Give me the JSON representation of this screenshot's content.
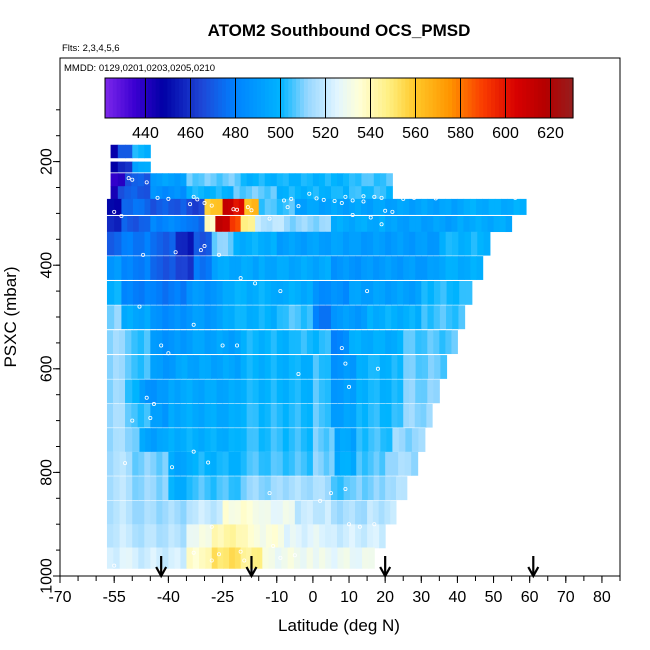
{
  "chart_data": {
    "type": "heatmap",
    "title": "ATOM2 Southbound OCS_PMSD",
    "subtitle": "Flts: 2,3,4,5,6",
    "note": "MMDD: 0129,0201,0203,0205,0210",
    "xlabel": "Latitude (deg N)",
    "ylabel": "PSXC (mbar)",
    "xlim": [
      -70,
      85
    ],
    "ylim": [
      1000,
      0
    ],
    "x_ticks": [
      -70,
      -55,
      -40,
      -25,
      -10,
      0,
      10,
      20,
      30,
      40,
      50,
      60,
      70,
      80
    ],
    "x_tick_labels": [
      "-70",
      "-55",
      "-40",
      "-25",
      "-10",
      "0",
      "10",
      "20",
      "30",
      "40",
      "50",
      "60",
      "70",
      "80"
    ],
    "y_ticks": [
      200,
      400,
      600,
      800,
      1000
    ],
    "y_tick_labels": [
      "200",
      "400",
      "600",
      "800",
      "1000"
    ],
    "colorbar": {
      "range": [
        422,
        630
      ],
      "ticks": [
        440,
        460,
        480,
        500,
        520,
        540,
        560,
        580,
        600,
        620
      ],
      "tick_labels": [
        "440",
        "460",
        "480",
        "500",
        "520",
        "540",
        "560",
        "580",
        "600",
        "620"
      ]
    },
    "arrows_latitude": [
      -42,
      -17,
      20,
      61
    ],
    "rows": [
      {
        "p": 180,
        "h": 25,
        "segs": [
          [
            -56,
            -54,
            448
          ],
          [
            -54,
            -50,
            468
          ],
          [
            -50,
            -45,
            500
          ]
        ]
      },
      {
        "p": 210,
        "h": 20,
        "segs": [
          [
            -56,
            -54,
            445
          ],
          [
            -54,
            -50,
            460
          ],
          [
            -50,
            -45,
            495
          ]
        ]
      },
      {
        "p": 235,
        "h": 25,
        "segs": [
          [
            -56,
            -52,
            440
          ],
          [
            -52,
            -45,
            470
          ],
          [
            -45,
            -35,
            492
          ],
          [
            -35,
            -20,
            508
          ],
          [
            -20,
            10,
            500
          ],
          [
            10,
            22,
            505
          ]
        ]
      },
      {
        "p": 260,
        "h": 25,
        "segs": [
          [
            -56,
            -54,
            440
          ],
          [
            -54,
            -45,
            470
          ],
          [
            -45,
            -35,
            485
          ],
          [
            -35,
            -22,
            500
          ],
          [
            -22,
            -10,
            508
          ],
          [
            -10,
            10,
            500
          ],
          [
            10,
            22,
            503
          ]
        ]
      },
      {
        "p": 287,
        "h": 30,
        "segs": [
          [
            -57,
            -53,
            450
          ],
          [
            -53,
            -45,
            475
          ],
          [
            -45,
            -35,
            470
          ],
          [
            -35,
            -30,
            465
          ],
          [
            -30,
            -25,
            560
          ],
          [
            -25,
            -22,
            610
          ],
          [
            -22,
            -19,
            600
          ],
          [
            -19,
            -15,
            565
          ],
          [
            -15,
            -5,
            505
          ],
          [
            -5,
            40,
            493
          ],
          [
            40,
            59,
            497
          ]
        ]
      },
      {
        "p": 320,
        "h": 30,
        "segs": [
          [
            -57,
            -53,
            455
          ],
          [
            -53,
            -45,
            470
          ],
          [
            -45,
            -35,
            482
          ],
          [
            -35,
            -30,
            475
          ],
          [
            -30,
            -27,
            540
          ],
          [
            -27,
            -23,
            612
          ],
          [
            -23,
            -20,
            590
          ],
          [
            -20,
            -16,
            545
          ],
          [
            -16,
            -8,
            518
          ],
          [
            -8,
            5,
            512
          ],
          [
            5,
            20,
            496
          ],
          [
            20,
            40,
            492
          ],
          [
            40,
            55,
            496
          ]
        ]
      },
      {
        "p": 358,
        "h": 45,
        "segs": [
          [
            -57,
            -53,
            470
          ],
          [
            -53,
            -45,
            478
          ],
          [
            -45,
            -38,
            472
          ],
          [
            -38,
            -33,
            455
          ],
          [
            -33,
            -28,
            470
          ],
          [
            -28,
            -22,
            510
          ],
          [
            -22,
            -10,
            498
          ],
          [
            -10,
            10,
            492
          ],
          [
            10,
            35,
            490
          ],
          [
            35,
            49,
            500
          ]
        ]
      },
      {
        "p": 405,
        "h": 45,
        "segs": [
          [
            -57,
            -53,
            488
          ],
          [
            -53,
            -45,
            480
          ],
          [
            -45,
            -38,
            470
          ],
          [
            -38,
            -33,
            462
          ],
          [
            -33,
            -28,
            478
          ],
          [
            -28,
            -15,
            495
          ],
          [
            -15,
            5,
            495
          ],
          [
            5,
            15,
            488
          ],
          [
            15,
            35,
            490
          ],
          [
            35,
            47,
            497
          ]
        ]
      },
      {
        "p": 453,
        "h": 45,
        "segs": [
          [
            -57,
            -53,
            498
          ],
          [
            -53,
            -45,
            480
          ],
          [
            -45,
            -35,
            478
          ],
          [
            -35,
            -25,
            488
          ],
          [
            -25,
            -10,
            498
          ],
          [
            -10,
            0,
            497
          ],
          [
            0,
            10,
            485
          ],
          [
            10,
            30,
            492
          ],
          [
            30,
            44,
            502
          ]
        ]
      },
      {
        "p": 500,
        "h": 45,
        "segs": [
          [
            -57,
            -53,
            510
          ],
          [
            -53,
            -45,
            495
          ],
          [
            -45,
            -35,
            485
          ],
          [
            -35,
            -25,
            490
          ],
          [
            -25,
            -10,
            499
          ],
          [
            -10,
            0,
            505
          ],
          [
            0,
            5,
            478
          ],
          [
            5,
            15,
            490
          ],
          [
            15,
            30,
            498
          ],
          [
            30,
            42,
            505
          ]
        ]
      },
      {
        "p": 548,
        "h": 45,
        "segs": [
          [
            -57,
            -52,
            512
          ],
          [
            -52,
            -45,
            505
          ],
          [
            -45,
            -35,
            488
          ],
          [
            -35,
            -20,
            493
          ],
          [
            -20,
            -5,
            500
          ],
          [
            -5,
            5,
            502
          ],
          [
            5,
            10,
            482
          ],
          [
            10,
            25,
            497
          ],
          [
            25,
            40,
            506
          ]
        ]
      },
      {
        "p": 596,
        "h": 45,
        "segs": [
          [
            -57,
            -52,
            512
          ],
          [
            -52,
            -45,
            505
          ],
          [
            -45,
            -38,
            490
          ],
          [
            -38,
            -20,
            494
          ],
          [
            -20,
            0,
            499
          ],
          [
            0,
            5,
            504
          ],
          [
            5,
            12,
            488
          ],
          [
            12,
            25,
            500
          ],
          [
            25,
            37,
            508
          ]
        ]
      },
      {
        "p": 643,
        "h": 45,
        "segs": [
          [
            -57,
            -52,
            512
          ],
          [
            -52,
            -48,
            500
          ],
          [
            -48,
            -40,
            488
          ],
          [
            -40,
            -20,
            495
          ],
          [
            -20,
            0,
            500
          ],
          [
            0,
            5,
            505
          ],
          [
            5,
            12,
            490
          ],
          [
            12,
            25,
            500
          ],
          [
            25,
            35,
            510
          ]
        ]
      },
      {
        "p": 690,
        "h": 45,
        "segs": [
          [
            -57,
            -52,
            514
          ],
          [
            -52,
            -45,
            505
          ],
          [
            -45,
            -40,
            490
          ],
          [
            -40,
            -20,
            496
          ],
          [
            -20,
            0,
            502
          ],
          [
            0,
            5,
            506
          ],
          [
            5,
            12,
            492
          ],
          [
            12,
            25,
            502
          ],
          [
            25,
            33,
            512
          ]
        ]
      },
      {
        "p": 737,
        "h": 45,
        "segs": [
          [
            -57,
            -52,
            514
          ],
          [
            -52,
            -48,
            508
          ],
          [
            -48,
            -40,
            493
          ],
          [
            -40,
            -20,
            498
          ],
          [
            -20,
            0,
            503
          ],
          [
            0,
            6,
            508
          ],
          [
            6,
            12,
            494
          ],
          [
            12,
            22,
            504
          ],
          [
            22,
            31,
            512
          ]
        ]
      },
      {
        "p": 783,
        "h": 45,
        "segs": [
          [
            -57,
            -50,
            516
          ],
          [
            -50,
            -40,
            510
          ],
          [
            -40,
            -35,
            495
          ],
          [
            -35,
            -20,
            500
          ],
          [
            -20,
            0,
            505
          ],
          [
            0,
            6,
            510
          ],
          [
            6,
            12,
            497
          ],
          [
            12,
            20,
            506
          ],
          [
            20,
            29,
            514
          ]
        ]
      },
      {
        "p": 830,
        "h": 45,
        "segs": [
          [
            -57,
            -50,
            517
          ],
          [
            -50,
            -40,
            512
          ],
          [
            -40,
            -35,
            498
          ],
          [
            -35,
            -20,
            505
          ],
          [
            -20,
            -10,
            512
          ],
          [
            -10,
            5,
            515
          ],
          [
            5,
            12,
            506
          ],
          [
            12,
            20,
            510
          ],
          [
            20,
            26,
            516
          ]
        ]
      },
      {
        "p": 877,
        "h": 45,
        "segs": [
          [
            -57,
            -50,
            518
          ],
          [
            -50,
            -35,
            514
          ],
          [
            -35,
            -25,
            520
          ],
          [
            -25,
            -15,
            534
          ],
          [
            -15,
            -5,
            528
          ],
          [
            -5,
            5,
            520
          ],
          [
            5,
            15,
            515
          ],
          [
            15,
            23,
            518
          ]
        ]
      },
      {
        "p": 923,
        "h": 45,
        "segs": [
          [
            -57,
            -50,
            520
          ],
          [
            -50,
            -35,
            517
          ],
          [
            -35,
            -28,
            530
          ],
          [
            -28,
            -18,
            542
          ],
          [
            -18,
            -8,
            533
          ],
          [
            -8,
            5,
            525
          ],
          [
            5,
            20,
            522
          ]
        ]
      },
      {
        "p": 965,
        "h": 40,
        "segs": [
          [
            -57,
            -50,
            524
          ],
          [
            -50,
            -35,
            522
          ],
          [
            -35,
            -28,
            538
          ],
          [
            -28,
            -20,
            552
          ],
          [
            -20,
            -14,
            546
          ],
          [
            -14,
            0,
            530
          ],
          [
            0,
            17,
            528
          ]
        ]
      }
    ],
    "points": [
      [
        -51,
        232
      ],
      [
        -50,
        235
      ],
      [
        -46,
        240
      ],
      [
        -33,
        268
      ],
      [
        -28,
        285
      ],
      [
        -22,
        292
      ],
      [
        -12,
        310
      ],
      [
        -7,
        288
      ],
      [
        -55,
        297
      ],
      [
        -53,
        305
      ],
      [
        -43,
        270
      ],
      [
        -40,
        272
      ],
      [
        -34,
        282
      ],
      [
        -32,
        273
      ],
      [
        -18,
        288
      ],
      [
        -8,
        275
      ],
      [
        -6,
        272
      ],
      [
        -4,
        286
      ],
      [
        1,
        271
      ],
      [
        3,
        274
      ],
      [
        6,
        276
      ],
      [
        8,
        280
      ],
      [
        9,
        268
      ],
      [
        11,
        275
      ],
      [
        14,
        277
      ],
      [
        17,
        268
      ],
      [
        19,
        270
      ],
      [
        -30,
        280
      ],
      [
        -21,
        293
      ],
      [
        -17,
        294
      ],
      [
        -1,
        262
      ],
      [
        11,
        303
      ],
      [
        14,
        267
      ],
      [
        16,
        308
      ],
      [
        19,
        321
      ],
      [
        20,
        295
      ],
      [
        22,
        297
      ],
      [
        25,
        272
      ],
      [
        28,
        270
      ],
      [
        34,
        271
      ],
      [
        56,
        270
      ],
      [
        -47,
        380
      ],
      [
        -38,
        375
      ],
      [
        -31,
        371
      ],
      [
        -30,
        363
      ],
      [
        -26,
        380
      ],
      [
        -20,
        425
      ],
      [
        -16,
        435
      ],
      [
        -9,
        450
      ],
      [
        -48,
        480
      ],
      [
        -42,
        555
      ],
      [
        -40,
        570
      ],
      [
        -33,
        515
      ],
      [
        -25,
        555
      ],
      [
        -21,
        555
      ],
      [
        -4,
        610
      ],
      [
        8,
        560
      ],
      [
        9,
        590
      ],
      [
        10,
        635
      ],
      [
        18,
        600
      ],
      [
        15,
        450
      ],
      [
        -44,
        668
      ],
      [
        -46,
        656
      ],
      [
        -45,
        695
      ],
      [
        -50,
        700
      ],
      [
        -52,
        782
      ],
      [
        -39,
        790
      ],
      [
        -33,
        760
      ],
      [
        -29,
        781
      ],
      [
        2,
        855
      ],
      [
        5,
        840
      ],
      [
        9,
        832
      ],
      [
        10,
        900
      ],
      [
        13,
        905
      ],
      [
        17,
        900
      ],
      [
        -28,
        905
      ],
      [
        -20,
        953
      ],
      [
        -33,
        955
      ],
      [
        -28,
        970
      ],
      [
        -26,
        958
      ],
      [
        -19,
        970
      ],
      [
        -11,
        942
      ],
      [
        -9,
        965
      ],
      [
        -5,
        960
      ],
      [
        -55,
        980
      ],
      [
        -12,
        840
      ]
    ]
  }
}
